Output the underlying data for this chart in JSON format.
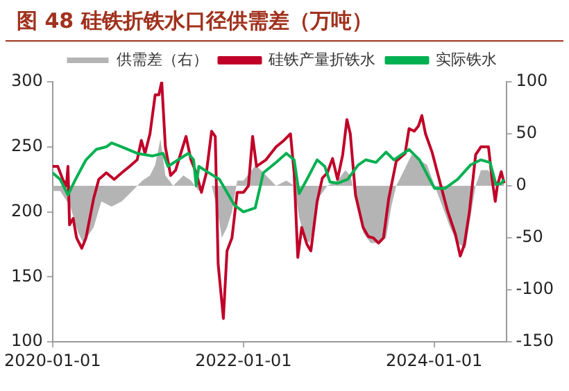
{
  "chart_data": {
    "type": "line",
    "title": "图 48 硅铁折铁水口径供需差（万吨）",
    "legend": "top",
    "xlim": [
      "2020-01-01",
      "2024-10-03"
    ],
    "xticks": [
      "2020-01-01",
      "2022-01-01",
      "2024-01-01"
    ],
    "ylim": [
      100,
      300
    ],
    "yticks": [
      100,
      150,
      200,
      250,
      300
    ],
    "y2lim": [
      -150,
      100
    ],
    "y2ticks": [
      -150,
      -100,
      -50,
      0,
      50,
      100
    ],
    "series": [
      {
        "name": "供需差（右）",
        "type": "area",
        "axis": "y2",
        "color": "#b4b4b4",
        "x": [
          "2020-01-01",
          "2020-01-30",
          "2020-03-09",
          "2020-04-08",
          "2020-04-28",
          "2020-06-06",
          "2020-07-06",
          "2020-08-14",
          "2020-09-22",
          "2020-11-01",
          "2020-12-10",
          "2021-01-08",
          "2021-01-28",
          "2021-02-17",
          "2021-03-08",
          "2021-04-07",
          "2021-05-16",
          "2021-06-14",
          "2021-07-14",
          "2021-08-02",
          "2021-09-01",
          "2021-09-21",
          "2021-10-10",
          "2021-10-30",
          "2021-11-18",
          "2021-12-08",
          "2022-01-01",
          "2022-02-17",
          "2022-03-28",
          "2022-05-06",
          "2022-06-14",
          "2022-07-14",
          "2022-08-02",
          "2022-08-22",
          "2022-09-11",
          "2022-09-30",
          "2022-10-20",
          "2022-11-18",
          "2022-12-27",
          "2023-01-26",
          "2023-02-14",
          "2023-03-06",
          "2023-04-04",
          "2023-05-03",
          "2023-06-02",
          "2023-07-01",
          "2023-07-21",
          "2023-08-09",
          "2023-09-08",
          "2023-10-07",
          "2023-11-06",
          "2023-12-05",
          "2024-01-03",
          "2024-02-02",
          "2024-03-02",
          "2024-03-31",
          "2024-04-30",
          "2024-05-19",
          "2024-06-08",
          "2024-06-28",
          "2024-07-27",
          "2024-08-16",
          "2024-09-04",
          "2024-09-25"
        ],
        "values": [
          -5,
          -5,
          -20,
          -45,
          -55,
          -40,
          -15,
          -20,
          -15,
          -5,
          5,
          10,
          20,
          45,
          10,
          0,
          10,
          5,
          -5,
          0,
          0,
          -20,
          -50,
          -40,
          -25,
          5,
          5,
          20,
          10,
          0,
          5,
          0,
          -30,
          -50,
          -55,
          -35,
          -10,
          0,
          5,
          15,
          10,
          -10,
          -45,
          -55,
          -55,
          -50,
          -20,
          0,
          15,
          30,
          25,
          20,
          0,
          -20,
          -40,
          -55,
          -60,
          -30,
          0,
          15,
          15,
          5,
          0,
          5
        ]
      },
      {
        "name": "硅铁产量折铁水",
        "type": "line",
        "color": "#c00028",
        "x": [
          "2020-01-01",
          "2020-01-21",
          "2020-02-09",
          "2020-02-23",
          "2020-02-29",
          "2020-03-06",
          "2020-03-20",
          "2020-04-02",
          "2020-04-22",
          "2020-05-08",
          "2020-06-06",
          "2020-06-26",
          "2020-07-25",
          "2020-08-24",
          "2020-09-22",
          "2020-10-22",
          "2020-11-20",
          "2020-12-06",
          "2020-12-20",
          "2021-01-08",
          "2021-01-28",
          "2021-02-11",
          "2021-02-22",
          "2021-03-08",
          "2021-03-28",
          "2021-04-16",
          "2021-05-06",
          "2021-05-26",
          "2021-06-14",
          "2021-07-04",
          "2021-07-24",
          "2021-08-12",
          "2021-09-01",
          "2021-09-15",
          "2021-09-26",
          "2021-10-16",
          "2021-10-30",
          "2021-11-18",
          "2021-12-08",
          "2022-01-01",
          "2022-01-20",
          "2022-02-05",
          "2022-02-20",
          "2022-03-28",
          "2022-05-06",
          "2022-06-05",
          "2022-06-30",
          "2022-07-14",
          "2022-07-28",
          "2022-08-12",
          "2022-09-01",
          "2022-09-16",
          "2022-10-10",
          "2022-10-30",
          "2022-11-18",
          "2022-12-08",
          "2022-12-27",
          "2023-01-16",
          "2023-02-01",
          "2023-02-14",
          "2023-03-06",
          "2023-04-04",
          "2023-04-24",
          "2023-05-13",
          "2023-06-02",
          "2023-06-21",
          "2023-07-11",
          "2023-08-09",
          "2023-09-12",
          "2023-09-27",
          "2023-10-17",
          "2023-11-02",
          "2023-11-15",
          "2023-11-29",
          "2023-12-24",
          "2024-01-23",
          "2024-02-21",
          "2024-03-22",
          "2024-04-10",
          "2024-04-26",
          "2024-05-15",
          "2024-06-08",
          "2024-06-28",
          "2024-07-27",
          "2024-08-10",
          "2024-08-22",
          "2024-08-30",
          "2024-09-14",
          "2024-09-25"
        ],
        "values": [
          235,
          235,
          225,
          220,
          235,
          190,
          195,
          180,
          172,
          180,
          210,
          225,
          230,
          225,
          230,
          235,
          240,
          255,
          245,
          260,
          290,
          290,
          300,
          250,
          228,
          232,
          245,
          258,
          240,
          230,
          215,
          230,
          262,
          258,
          160,
          118,
          170,
          180,
          215,
          215,
          220,
          258,
          235,
          240,
          250,
          255,
          260,
          230,
          165,
          188,
          175,
          170,
          208,
          226,
          230,
          241,
          225,
          244,
          271,
          260,
          213,
          188,
          181,
          180,
          176,
          180,
          210,
          239,
          245,
          264,
          262,
          266,
          274,
          260,
          246,
          223,
          201,
          183,
          166,
          175,
          200,
          244,
          250,
          250,
          225,
          208,
          220,
          231,
          222
        ]
      },
      {
        "name": "实际铁水",
        "type": "line",
        "color": "#00b050",
        "x": [
          "2020-01-01",
          "2020-01-30",
          "2020-02-29",
          "2020-03-29",
          "2020-05-08",
          "2020-06-16",
          "2020-07-25",
          "2020-08-14",
          "2020-09-22",
          "2020-11-20",
          "2021-01-18",
          "2021-02-27",
          "2021-03-18",
          "2021-04-26",
          "2021-06-04",
          "2021-06-24",
          "2021-07-04",
          "2021-07-14",
          "2021-08-22",
          "2021-10-01",
          "2021-10-30",
          "2021-11-28",
          "2022-01-01",
          "2022-02-15",
          "2022-03-18",
          "2022-05-06",
          "2022-06-14",
          "2022-07-14",
          "2022-08-02",
          "2022-09-01",
          "2022-10-10",
          "2022-11-08",
          "2022-11-28",
          "2022-12-27",
          "2023-02-04",
          "2023-03-16",
          "2023-04-14",
          "2023-05-23",
          "2023-07-01",
          "2023-07-31",
          "2023-09-27",
          "2023-11-06",
          "2023-12-15",
          "2024-01-03",
          "2024-02-11",
          "2024-03-31",
          "2024-05-19",
          "2024-06-28",
          "2024-08-02",
          "2024-08-25",
          "2024-09-14",
          "2024-09-25"
        ],
        "values": [
          230,
          225,
          213,
          225,
          240,
          248,
          250,
          253,
          250,
          245,
          243,
          245,
          235,
          240,
          245,
          240,
          220,
          235,
          230,
          225,
          215,
          205,
          200,
          203,
          230,
          238,
          245,
          240,
          214,
          225,
          240,
          235,
          223,
          222,
          225,
          236,
          240,
          238,
          246,
          240,
          248,
          240,
          225,
          218,
          218,
          225,
          236,
          240,
          238,
          221,
          222,
          225
        ]
      }
    ]
  }
}
